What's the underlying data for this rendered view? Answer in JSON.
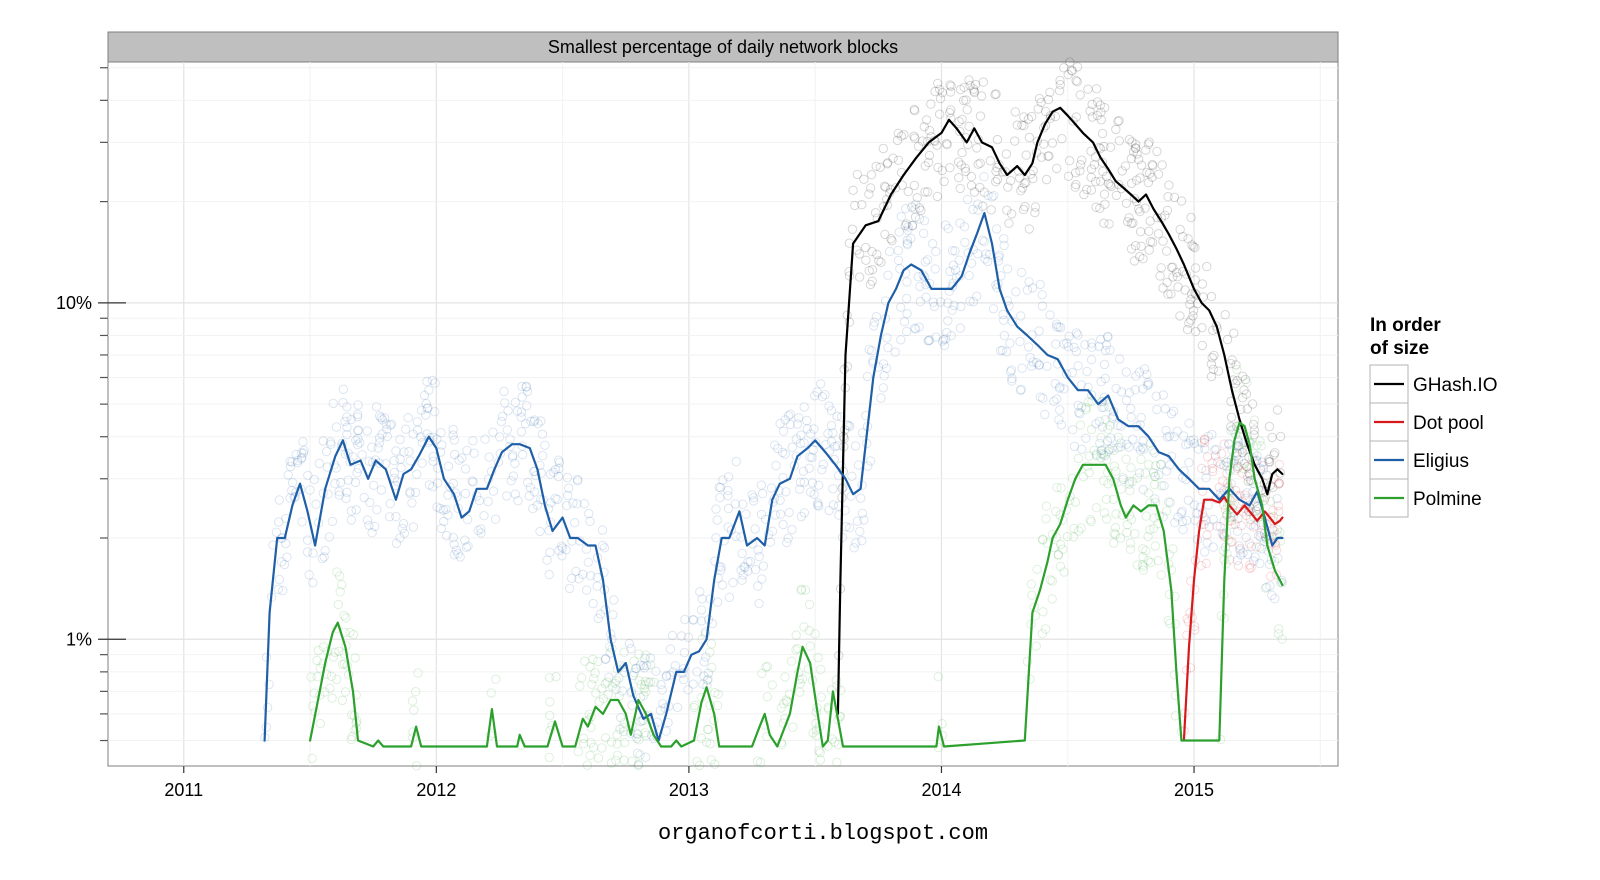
{
  "footer": "organofcorti.blogspot.com",
  "chart_data": {
    "type": "line",
    "title": "Smallest percentage of daily network blocks",
    "xlabel": "",
    "ylabel": "",
    "y_scale": "log",
    "xlim": [
      2010.7,
      2015.57
    ],
    "ylim": [
      0.42,
      52
    ],
    "x_ticks": [
      {
        "value": 2011,
        "label": "2011"
      },
      {
        "value": 2012,
        "label": "2012"
      },
      {
        "value": 2013,
        "label": "2013"
      },
      {
        "value": 2014,
        "label": "2014"
      },
      {
        "value": 2015,
        "label": "2015"
      }
    ],
    "y_ticks": [
      {
        "value": 1,
        "label": "1%"
      },
      {
        "value": 10,
        "label": "10%"
      }
    ],
    "grid": true,
    "legend": {
      "title_lines": [
        "In order",
        "of size"
      ],
      "position": "right",
      "entries": [
        "GHash.IO",
        "Dot pool",
        "Eligius",
        "Polmine"
      ]
    },
    "series": [
      {
        "name": "GHash.IO",
        "color": "#000000",
        "points": [
          [
            2013.59,
            0.6
          ],
          [
            2013.6,
            1.5
          ],
          [
            2013.62,
            7
          ],
          [
            2013.65,
            15
          ],
          [
            2013.7,
            17
          ],
          [
            2013.75,
            17.5
          ],
          [
            2013.8,
            21
          ],
          [
            2013.85,
            24
          ],
          [
            2013.9,
            27
          ],
          [
            2013.95,
            30
          ],
          [
            2014.0,
            32
          ],
          [
            2014.03,
            35
          ],
          [
            2014.06,
            33
          ],
          [
            2014.1,
            30
          ],
          [
            2014.13,
            33
          ],
          [
            2014.16,
            30
          ],
          [
            2014.2,
            29
          ],
          [
            2014.23,
            26
          ],
          [
            2014.26,
            24
          ],
          [
            2014.3,
            25.5
          ],
          [
            2014.33,
            24
          ],
          [
            2014.36,
            26
          ],
          [
            2014.38,
            30
          ],
          [
            2014.41,
            34
          ],
          [
            2014.44,
            37
          ],
          [
            2014.47,
            38
          ],
          [
            2014.5,
            36
          ],
          [
            2014.53,
            34
          ],
          [
            2014.56,
            32
          ],
          [
            2014.6,
            30
          ],
          [
            2014.63,
            27
          ],
          [
            2014.66,
            25
          ],
          [
            2014.69,
            23
          ],
          [
            2014.72,
            22
          ],
          [
            2014.75,
            21
          ],
          [
            2014.78,
            20
          ],
          [
            2014.81,
            21
          ],
          [
            2014.84,
            19
          ],
          [
            2014.87,
            17.5
          ],
          [
            2014.9,
            16
          ],
          [
            2014.93,
            14.5
          ],
          [
            2014.96,
            13
          ],
          [
            2015.0,
            11
          ],
          [
            2015.03,
            10
          ],
          [
            2015.06,
            9.5
          ],
          [
            2015.09,
            8.5
          ],
          [
            2015.12,
            7
          ],
          [
            2015.15,
            5.5
          ],
          [
            2015.18,
            4.5
          ],
          [
            2015.21,
            3.8
          ],
          [
            2015.24,
            3.3
          ],
          [
            2015.27,
            3.0
          ],
          [
            2015.29,
            2.7
          ],
          [
            2015.31,
            3.1
          ],
          [
            2015.33,
            3.2
          ],
          [
            2015.35,
            3.1
          ]
        ]
      },
      {
        "name": "Dot pool",
        "color": "#d7191c",
        "points": [
          [
            2014.96,
            0.5
          ],
          [
            2014.98,
            0.95
          ],
          [
            2015.0,
            1.5
          ],
          [
            2015.02,
            2.1
          ],
          [
            2015.04,
            2.6
          ],
          [
            2015.07,
            2.6
          ],
          [
            2015.1,
            2.55
          ],
          [
            2015.12,
            2.65
          ],
          [
            2015.14,
            2.5
          ],
          [
            2015.17,
            2.35
          ],
          [
            2015.2,
            2.5
          ],
          [
            2015.23,
            2.35
          ],
          [
            2015.25,
            2.25
          ],
          [
            2015.28,
            2.4
          ],
          [
            2015.3,
            2.3
          ],
          [
            2015.32,
            2.2
          ],
          [
            2015.34,
            2.25
          ],
          [
            2015.35,
            2.3
          ]
        ]
      },
      {
        "name": "Eligius",
        "color": "#1f5fa8",
        "points": [
          [
            2011.32,
            0.5
          ],
          [
            2011.34,
            1.2
          ],
          [
            2011.37,
            2.0
          ],
          [
            2011.4,
            2.0
          ],
          [
            2011.43,
            2.5
          ],
          [
            2011.46,
            2.9
          ],
          [
            2011.49,
            2.4
          ],
          [
            2011.52,
            1.9
          ],
          [
            2011.56,
            2.8
          ],
          [
            2011.6,
            3.5
          ],
          [
            2011.63,
            3.9
          ],
          [
            2011.66,
            3.3
          ],
          [
            2011.7,
            3.4
          ],
          [
            2011.73,
            3.0
          ],
          [
            2011.76,
            3.4
          ],
          [
            2011.8,
            3.2
          ],
          [
            2011.84,
            2.6
          ],
          [
            2011.87,
            3.1
          ],
          [
            2011.9,
            3.2
          ],
          [
            2011.93,
            3.5
          ],
          [
            2011.97,
            4.0
          ],
          [
            2012.0,
            3.7
          ],
          [
            2012.03,
            3.0
          ],
          [
            2012.07,
            2.7
          ],
          [
            2012.1,
            2.3
          ],
          [
            2012.13,
            2.4
          ],
          [
            2012.16,
            2.8
          ],
          [
            2012.2,
            2.8
          ],
          [
            2012.23,
            3.2
          ],
          [
            2012.26,
            3.6
          ],
          [
            2012.3,
            3.8
          ],
          [
            2012.33,
            3.8
          ],
          [
            2012.37,
            3.7
          ],
          [
            2012.4,
            3.2
          ],
          [
            2012.43,
            2.5
          ],
          [
            2012.46,
            2.1
          ],
          [
            2012.5,
            2.3
          ],
          [
            2012.53,
            2.0
          ],
          [
            2012.56,
            2.0
          ],
          [
            2012.6,
            1.9
          ],
          [
            2012.63,
            1.9
          ],
          [
            2012.66,
            1.5
          ],
          [
            2012.69,
            1.0
          ],
          [
            2012.72,
            0.8
          ],
          [
            2012.75,
            0.85
          ],
          [
            2012.78,
            0.68
          ],
          [
            2012.82,
            0.58
          ],
          [
            2012.85,
            0.6
          ],
          [
            2012.88,
            0.5
          ],
          [
            2012.91,
            0.6
          ],
          [
            2012.95,
            0.8
          ],
          [
            2012.98,
            0.8
          ],
          [
            2013.01,
            0.9
          ],
          [
            2013.04,
            0.92
          ],
          [
            2013.07,
            1.0
          ],
          [
            2013.1,
            1.5
          ],
          [
            2013.13,
            2.0
          ],
          [
            2013.16,
            2.0
          ],
          [
            2013.2,
            2.4
          ],
          [
            2013.23,
            1.9
          ],
          [
            2013.27,
            2.0
          ],
          [
            2013.3,
            1.9
          ],
          [
            2013.33,
            2.6
          ],
          [
            2013.36,
            2.9
          ],
          [
            2013.4,
            3.0
          ],
          [
            2013.43,
            3.5
          ],
          [
            2013.47,
            3.7
          ],
          [
            2013.5,
            3.9
          ],
          [
            2013.54,
            3.6
          ],
          [
            2013.58,
            3.3
          ],
          [
            2013.62,
            3.0
          ],
          [
            2013.65,
            2.7
          ],
          [
            2013.68,
            2.8
          ],
          [
            2013.7,
            3.8
          ],
          [
            2013.73,
            6
          ],
          [
            2013.76,
            8
          ],
          [
            2013.79,
            10
          ],
          [
            2013.82,
            11
          ],
          [
            2013.85,
            12.5
          ],
          [
            2013.88,
            13
          ],
          [
            2013.92,
            12.5
          ],
          [
            2013.96,
            11
          ],
          [
            2014.0,
            11
          ],
          [
            2014.04,
            11
          ],
          [
            2014.08,
            12
          ],
          [
            2014.11,
            14
          ],
          [
            2014.14,
            16
          ],
          [
            2014.17,
            18.5
          ],
          [
            2014.2,
            15
          ],
          [
            2014.23,
            11
          ],
          [
            2014.26,
            9.5
          ],
          [
            2014.3,
            8.5
          ],
          [
            2014.34,
            8
          ],
          [
            2014.38,
            7.5
          ],
          [
            2014.42,
            7
          ],
          [
            2014.46,
            6.8
          ],
          [
            2014.5,
            6
          ],
          [
            2014.54,
            5.5
          ],
          [
            2014.58,
            5.5
          ],
          [
            2014.62,
            5.0
          ],
          [
            2014.66,
            5.3
          ],
          [
            2014.7,
            4.5
          ],
          [
            2014.74,
            4.3
          ],
          [
            2014.78,
            4.3
          ],
          [
            2014.82,
            4.0
          ],
          [
            2014.86,
            3.6
          ],
          [
            2014.9,
            3.5
          ],
          [
            2014.94,
            3.2
          ],
          [
            2014.98,
            3.0
          ],
          [
            2015.02,
            2.8
          ],
          [
            2015.06,
            2.8
          ],
          [
            2015.1,
            2.6
          ],
          [
            2015.14,
            2.8
          ],
          [
            2015.18,
            2.6
          ],
          [
            2015.22,
            2.5
          ],
          [
            2015.25,
            2.75
          ],
          [
            2015.28,
            2.3
          ],
          [
            2015.31,
            1.9
          ],
          [
            2015.33,
            2.0
          ],
          [
            2015.35,
            2.0
          ]
        ]
      },
      {
        "name": "Polmine",
        "color": "#2ca02c",
        "points": [
          [
            2011.5,
            0.5
          ],
          [
            2011.53,
            0.65
          ],
          [
            2011.56,
            0.85
          ],
          [
            2011.59,
            1.05
          ],
          [
            2011.61,
            1.12
          ],
          [
            2011.64,
            0.95
          ],
          [
            2011.67,
            0.7
          ],
          [
            2011.69,
            0.5
          ],
          [
            2011.75,
            0.48
          ],
          [
            2011.77,
            0.5
          ],
          [
            2011.79,
            0.48
          ],
          [
            2011.9,
            0.48
          ],
          [
            2011.92,
            0.55
          ],
          [
            2011.94,
            0.48
          ],
          [
            2012.2,
            0.48
          ],
          [
            2012.22,
            0.62
          ],
          [
            2012.24,
            0.48
          ],
          [
            2012.32,
            0.48
          ],
          [
            2012.33,
            0.52
          ],
          [
            2012.35,
            0.48
          ],
          [
            2012.44,
            0.48
          ],
          [
            2012.47,
            0.57
          ],
          [
            2012.5,
            0.48
          ],
          [
            2012.55,
            0.48
          ],
          [
            2012.58,
            0.58
          ],
          [
            2012.6,
            0.55
          ],
          [
            2012.63,
            0.63
          ],
          [
            2012.66,
            0.6
          ],
          [
            2012.69,
            0.66
          ],
          [
            2012.72,
            0.66
          ],
          [
            2012.75,
            0.6
          ],
          [
            2012.77,
            0.52
          ],
          [
            2012.8,
            0.66
          ],
          [
            2012.83,
            0.6
          ],
          [
            2012.86,
            0.52
          ],
          [
            2012.89,
            0.48
          ],
          [
            2012.93,
            0.48
          ],
          [
            2012.95,
            0.5
          ],
          [
            2012.97,
            0.48
          ],
          [
            2013.02,
            0.5
          ],
          [
            2013.05,
            0.65
          ],
          [
            2013.07,
            0.72
          ],
          [
            2013.1,
            0.6
          ],
          [
            2013.12,
            0.48
          ],
          [
            2013.25,
            0.48
          ],
          [
            2013.28,
            0.55
          ],
          [
            2013.3,
            0.6
          ],
          [
            2013.32,
            0.52
          ],
          [
            2013.35,
            0.48
          ],
          [
            2013.4,
            0.6
          ],
          [
            2013.43,
            0.8
          ],
          [
            2013.45,
            0.95
          ],
          [
            2013.48,
            0.85
          ],
          [
            2013.51,
            0.6
          ],
          [
            2013.53,
            0.48
          ],
          [
            2013.55,
            0.5
          ],
          [
            2013.57,
            0.7
          ],
          [
            2013.59,
            0.58
          ],
          [
            2013.61,
            0.48
          ],
          [
            2013.98,
            0.48
          ],
          [
            2013.99,
            0.55
          ],
          [
            2014.01,
            0.48
          ],
          [
            2014.33,
            0.5
          ],
          [
            2014.36,
            1.2
          ],
          [
            2014.39,
            1.4
          ],
          [
            2014.42,
            1.7
          ],
          [
            2014.44,
            2.0
          ],
          [
            2014.47,
            2.2
          ],
          [
            2014.5,
            2.6
          ],
          [
            2014.53,
            3.0
          ],
          [
            2014.56,
            3.3
          ],
          [
            2014.59,
            3.3
          ],
          [
            2014.62,
            3.3
          ],
          [
            2014.65,
            3.3
          ],
          [
            2014.68,
            3.0
          ],
          [
            2014.71,
            2.5
          ],
          [
            2014.73,
            2.3
          ],
          [
            2014.76,
            2.5
          ],
          [
            2014.79,
            2.4
          ],
          [
            2014.82,
            2.5
          ],
          [
            2014.85,
            2.5
          ],
          [
            2014.88,
            2.1
          ],
          [
            2014.91,
            1.4
          ],
          [
            2014.93,
            0.8
          ],
          [
            2014.95,
            0.5
          ],
          [
            2015.1,
            0.5
          ],
          [
            2015.12,
            1.5
          ],
          [
            2015.14,
            3.0
          ],
          [
            2015.16,
            3.9
          ],
          [
            2015.18,
            4.4
          ],
          [
            2015.2,
            4.3
          ],
          [
            2015.22,
            3.8
          ],
          [
            2015.24,
            3.0
          ],
          [
            2015.27,
            2.5
          ],
          [
            2015.29,
            1.9
          ],
          [
            2015.32,
            1.6
          ],
          [
            2015.35,
            1.45
          ]
        ]
      }
    ]
  }
}
